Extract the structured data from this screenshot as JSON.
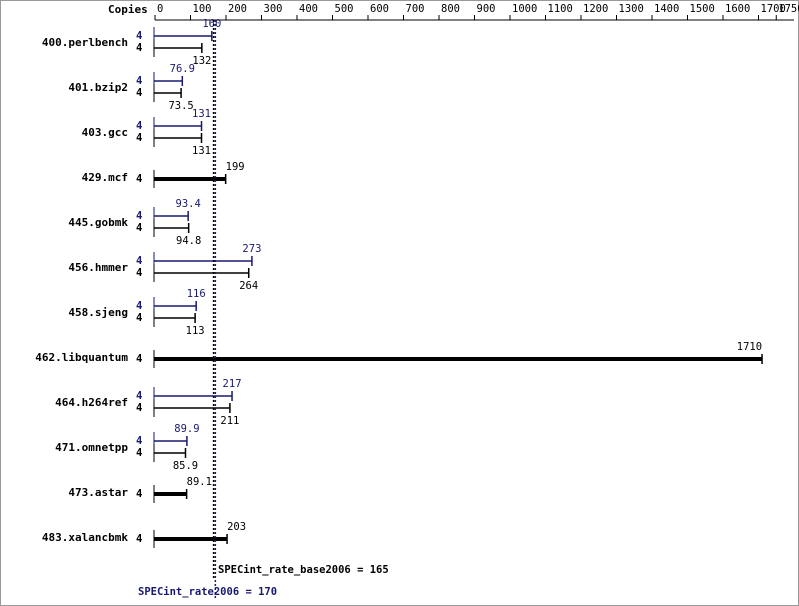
{
  "chart_data": {
    "type": "spec-bar",
    "x_axis_title": "Copies",
    "categories": [
      "400.perlbench",
      "401.bzip2",
      "403.gcc",
      "429.mcf",
      "445.gobmk",
      "456.hmmer",
      "458.sjeng",
      "462.libquantum",
      "464.h264ref",
      "471.omnetpp",
      "473.astar",
      "483.xalancbmk"
    ],
    "series": [
      {
        "color": "#191970",
        "copies": [
          4,
          4,
          4,
          null,
          4,
          4,
          4,
          null,
          4,
          4,
          null,
          null
        ],
        "values": [
          160,
          76.9,
          131,
          null,
          93.4,
          273,
          116,
          null,
          217,
          89.9,
          null,
          null
        ]
      },
      {
        "color": "#000000",
        "copies": [
          4,
          4,
          4,
          4,
          4,
          4,
          4,
          4,
          4,
          4,
          4,
          4
        ],
        "values": [
          132,
          73.5,
          131,
          199,
          94.8,
          264,
          113,
          1710,
          211,
          85.9,
          89.1,
          203
        ]
      }
    ],
    "xlim": [
      0,
      1800
    ],
    "xticks": [
      0,
      100,
      200,
      300,
      400,
      500,
      600,
      700,
      800,
      900,
      1000,
      1100,
      1200,
      1300,
      1400,
      1500,
      1600,
      1700,
      1750
    ],
    "reference_lines": [
      {
        "label": "SPECint_rate_base2006 = 165",
        "value": 165,
        "color": "#000000"
      },
      {
        "label": "SPECint_rate2006 = 170",
        "value": 170,
        "color": "#191970"
      }
    ]
  }
}
